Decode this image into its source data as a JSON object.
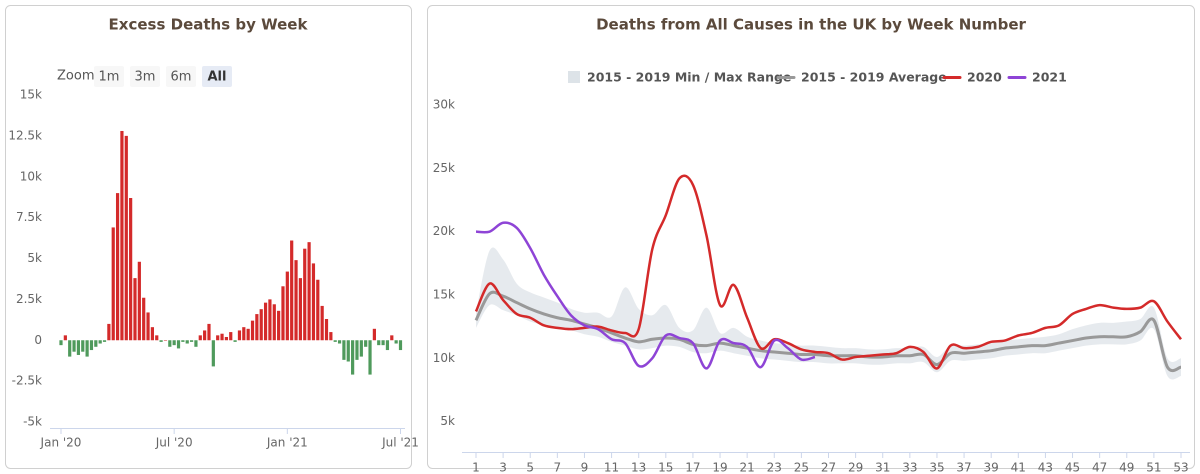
{
  "chart_data": [
    {
      "type": "bar",
      "title": "Excess Deaths by Week",
      "range_selector": {
        "label": "Zoom",
        "buttons": [
          "1m",
          "3m",
          "6m",
          "All"
        ],
        "selected": 3
      },
      "categories": [
        "Jan '20",
        null,
        null,
        null,
        null,
        null,
        null,
        null,
        null,
        null,
        null,
        null,
        null,
        null,
        null,
        null,
        null,
        null,
        null,
        null,
        null,
        null,
        null,
        null,
        null,
        null,
        "Jul '20",
        null,
        null,
        null,
        null,
        null,
        null,
        null,
        null,
        null,
        null,
        null,
        null,
        null,
        null,
        null,
        null,
        null,
        null,
        null,
        null,
        null,
        null,
        null,
        null,
        null,
        "Jan '21",
        null,
        null,
        null,
        null,
        null,
        null,
        null,
        null,
        null,
        null,
        null,
        null,
        null,
        null,
        null,
        null,
        null,
        null,
        null,
        null,
        null,
        null,
        null,
        null,
        null,
        "Jul '21"
      ],
      "values": [
        -300,
        300,
        -1000,
        -700,
        -900,
        -700,
        -1000,
        -600,
        -400,
        -200,
        -100,
        1000,
        6900,
        9000,
        12800,
        12500,
        8700,
        3800,
        4800,
        2600,
        1700,
        800,
        300,
        -100,
        0,
        -400,
        -300,
        -500,
        -100,
        -200,
        -100,
        -400,
        300,
        600,
        1000,
        -1600,
        300,
        400,
        200,
        500,
        -100,
        600,
        800,
        700,
        1200,
        1600,
        1900,
        2300,
        2500,
        2200,
        1800,
        3300,
        4200,
        6100,
        4900,
        3800,
        5600,
        6000,
        4700,
        3700,
        2100,
        1300,
        500,
        -100,
        -200,
        -1200,
        -1300,
        -2100,
        -1200,
        -1000,
        -400,
        -2100,
        700,
        -300,
        -300,
        -600,
        300,
        -200,
        -600
      ],
      "positive_color": "#d42a2a",
      "negative_color": "#4f9a5c",
      "ylim": [
        -5000,
        15000
      ],
      "yticks": [
        {
          "value": -5000,
          "label": "-5k"
        },
        {
          "value": -2500,
          "label": "-2.5k"
        },
        0,
        {
          "value": 2500,
          "label": "2.5k"
        },
        {
          "value": 5000,
          "label": "5k"
        },
        {
          "value": 7500,
          "label": "7.5k"
        },
        {
          "value": 10000,
          "label": "10k"
        },
        {
          "value": 12500,
          "label": "12.5k"
        },
        {
          "value": 15000,
          "label": "15k"
        }
      ],
      "grid": false
    },
    {
      "type": "line",
      "title": "Deaths from All Causes in the UK by Week Number",
      "x": [
        1,
        2,
        3,
        4,
        5,
        6,
        7,
        8,
        9,
        10,
        11,
        12,
        13,
        14,
        15,
        16,
        17,
        18,
        19,
        20,
        21,
        22,
        23,
        24,
        25,
        26,
        27,
        28,
        29,
        30,
        31,
        32,
        33,
        34,
        35,
        36,
        37,
        38,
        39,
        40,
        41,
        42,
        43,
        44,
        45,
        46,
        47,
        48,
        49,
        50,
        51,
        52,
        53
      ],
      "series": [
        {
          "name": "2015 - 2019 Min / Max Range",
          "color": "#dde3e8",
          "low": [
            12400,
            14200,
            13800,
            13400,
            12900,
            12600,
            12300,
            12200,
            11900,
            11700,
            11300,
            11000,
            10700,
            10800,
            11000,
            10900,
            10500,
            10400,
            10600,
            10400,
            10200,
            10000,
            9900,
            9800,
            9700,
            9700,
            9600,
            9600,
            9600,
            9500,
            9500,
            9600,
            9600,
            9700,
            8900,
            9800,
            9800,
            9900,
            10000,
            10200,
            10300,
            10400,
            10400,
            10600,
            10800,
            11000,
            11100,
            11100,
            11100,
            11400,
            12300,
            8600,
            8600
          ],
          "high": [
            13600,
            18500,
            17800,
            15900,
            15200,
            14800,
            14400,
            13900,
            13600,
            13600,
            13300,
            15600,
            13900,
            13400,
            14200,
            12400,
            12200,
            14000,
            12000,
            12400,
            11700,
            11400,
            11200,
            11100,
            11000,
            11000,
            10900,
            10800,
            10800,
            10700,
            10700,
            10800,
            10800,
            10900,
            10100,
            11000,
            11000,
            11100,
            11200,
            11400,
            11500,
            11600,
            11700,
            11900,
            12300,
            12600,
            12800,
            12800,
            12900,
            13100,
            14000,
            10000,
            10000
          ]
        },
        {
          "name": "2015 - 2019 Average",
          "color": "#999999",
          "values": [
            13000,
            15100,
            14900,
            14400,
            13900,
            13500,
            13200,
            13000,
            12700,
            12400,
            12000,
            11600,
            11300,
            11500,
            11600,
            11500,
            11100,
            11000,
            11200,
            11000,
            10800,
            10600,
            10500,
            10400,
            10300,
            10300,
            10200,
            10200,
            10200,
            10100,
            10100,
            10200,
            10200,
            10300,
            9500,
            10400,
            10400,
            10500,
            10600,
            10800,
            10900,
            11000,
            11000,
            11200,
            11400,
            11600,
            11700,
            11700,
            11700,
            12100,
            13000,
            9300,
            9300
          ]
        },
        {
          "name": "2020",
          "color": "#d42a2a",
          "values": [
            13700,
            15900,
            14600,
            13500,
            13200,
            12600,
            12400,
            12300,
            12400,
            12500,
            12200,
            12000,
            12300,
            18600,
            21300,
            24200,
            23700,
            19700,
            14200,
            15800,
            13200,
            10800,
            11500,
            11200,
            10700,
            10500,
            10400,
            9900,
            10100,
            10200,
            10300,
            10400,
            10900,
            10500,
            9200,
            11000,
            10800,
            10900,
            11300,
            11400,
            11800,
            12000,
            12400,
            12600,
            13500,
            13900,
            14200,
            14000,
            13900,
            14000,
            14500,
            12900,
            11500
          ]
        },
        {
          "name": "2021",
          "color": "#8e44d6",
          "values": [
            20000,
            20000,
            20700,
            20300,
            18700,
            16600,
            14900,
            13400,
            12600,
            12300,
            11500,
            11200,
            9400,
            10000,
            11800,
            11600,
            11200,
            9200,
            11400,
            11200,
            10900,
            9300,
            11400,
            10800,
            9900,
            10100,
            null,
            null,
            null,
            null,
            null,
            null,
            null,
            null,
            null,
            null,
            null,
            null,
            null,
            null,
            null,
            null,
            null,
            null,
            null,
            null,
            null,
            null,
            null,
            null,
            null,
            null,
            null
          ]
        }
      ],
      "xlim": [
        1,
        53
      ],
      "xticks": [
        1,
        3,
        5,
        7,
        9,
        11,
        13,
        15,
        17,
        19,
        21,
        23,
        25,
        27,
        29,
        31,
        33,
        35,
        37,
        39,
        41,
        43,
        45,
        47,
        49,
        51,
        53
      ],
      "ylim": [
        2600,
        30000
      ],
      "yticks": [
        {
          "value": 5000,
          "label": "5k"
        },
        {
          "value": 10000,
          "label": "10k"
        },
        {
          "value": 15000,
          "label": "15k"
        },
        {
          "value": 20000,
          "label": "20k"
        },
        {
          "value": 25000,
          "label": "25k"
        },
        {
          "value": 30000,
          "label": "30k"
        }
      ],
      "grid": false
    }
  ]
}
